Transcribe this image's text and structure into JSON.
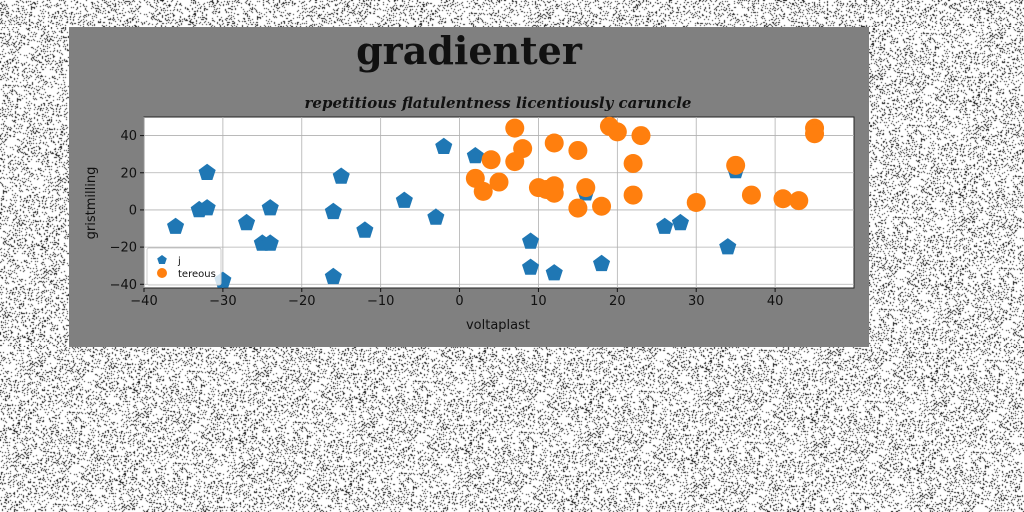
{
  "figure": {
    "title": "gradienter",
    "background": "#808080"
  },
  "chart_data": {
    "type": "scatter",
    "subtitle": "repetitious flatulentness licentiously caruncle",
    "xlabel": "voltaplast",
    "ylabel": "gristmilling",
    "xlim": [
      -40,
      50
    ],
    "ylim": [
      -42,
      50
    ],
    "xticks": [
      -40,
      -30,
      -20,
      -10,
      0,
      10,
      20,
      30,
      40
    ],
    "yticks": [
      -40,
      -20,
      0,
      20,
      40
    ],
    "grid": true,
    "legend_position": "lower-left",
    "series": [
      {
        "name": "j",
        "marker": "pentagon",
        "color": "#1f77b4",
        "points": [
          [
            -36,
            -9
          ],
          [
            -33,
            0
          ],
          [
            -32,
            1
          ],
          [
            -32,
            20
          ],
          [
            -30,
            -38
          ],
          [
            -27,
            -7
          ],
          [
            -25,
            -18
          ],
          [
            -24,
            -18
          ],
          [
            -24,
            1
          ],
          [
            -16,
            -1
          ],
          [
            -16,
            -36
          ],
          [
            -15,
            18
          ],
          [
            -12,
            -11
          ],
          [
            -7,
            5
          ],
          [
            -3,
            -4
          ],
          [
            -2,
            34
          ],
          [
            2,
            29
          ],
          [
            9,
            -17
          ],
          [
            9,
            -31
          ],
          [
            12,
            -34
          ],
          [
            16,
            9
          ],
          [
            18,
            -29
          ],
          [
            26,
            -9
          ],
          [
            28,
            -7
          ],
          [
            34,
            -20
          ],
          [
            35,
            21
          ]
        ]
      },
      {
        "name": "tereous",
        "marker": "circle",
        "color": "#ff7f0e",
        "points": [
          [
            2,
            17
          ],
          [
            3,
            10
          ],
          [
            4,
            27
          ],
          [
            5,
            15
          ],
          [
            7,
            26
          ],
          [
            7,
            44
          ],
          [
            8,
            33
          ],
          [
            10,
            12
          ],
          [
            11,
            11
          ],
          [
            12,
            9
          ],
          [
            12,
            13
          ],
          [
            12,
            36
          ],
          [
            15,
            32
          ],
          [
            15,
            1
          ],
          [
            16,
            12
          ],
          [
            18,
            2
          ],
          [
            19,
            45
          ],
          [
            20,
            42
          ],
          [
            22,
            8
          ],
          [
            22,
            25
          ],
          [
            23,
            40
          ],
          [
            30,
            4
          ],
          [
            35,
            24
          ],
          [
            37,
            8
          ],
          [
            41,
            6
          ],
          [
            43,
            5
          ],
          [
            45,
            44
          ],
          [
            45,
            41
          ]
        ]
      }
    ]
  }
}
